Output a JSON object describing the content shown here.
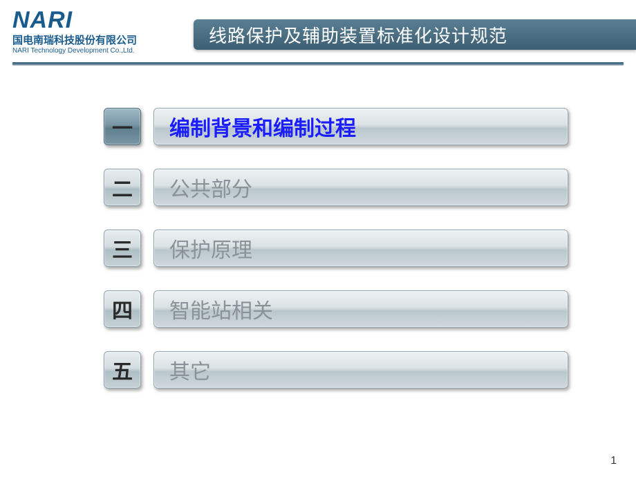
{
  "logo": {
    "brand": "NARI",
    "cn": "国电南瑞科技股份有限公司",
    "en": "NARI Technology Development Co.,Ltd."
  },
  "title": "线路保护及辅助装置标准化设计规范",
  "toc": [
    {
      "num": "一",
      "label": "编制背景和编制过程",
      "active": true
    },
    {
      "num": "二",
      "label": "公共部分",
      "active": false
    },
    {
      "num": "三",
      "label": "保护原理",
      "active": false
    },
    {
      "num": "四",
      "label": "智能站相关",
      "active": false
    },
    {
      "num": "五",
      "label": "其它",
      "active": false
    }
  ],
  "page_number": "1",
  "colors": {
    "brand": "#1a5b8e",
    "title_bar_top": "#5a7e93",
    "title_bar_bottom": "#3d5f73",
    "active_text": "#1a1dff",
    "inactive_text": "#8a9297",
    "background": "#ffffff"
  },
  "fontsizes": {
    "logo": 34,
    "title": 26,
    "toc_label": 30,
    "toc_num": 30,
    "page_num": 16
  }
}
